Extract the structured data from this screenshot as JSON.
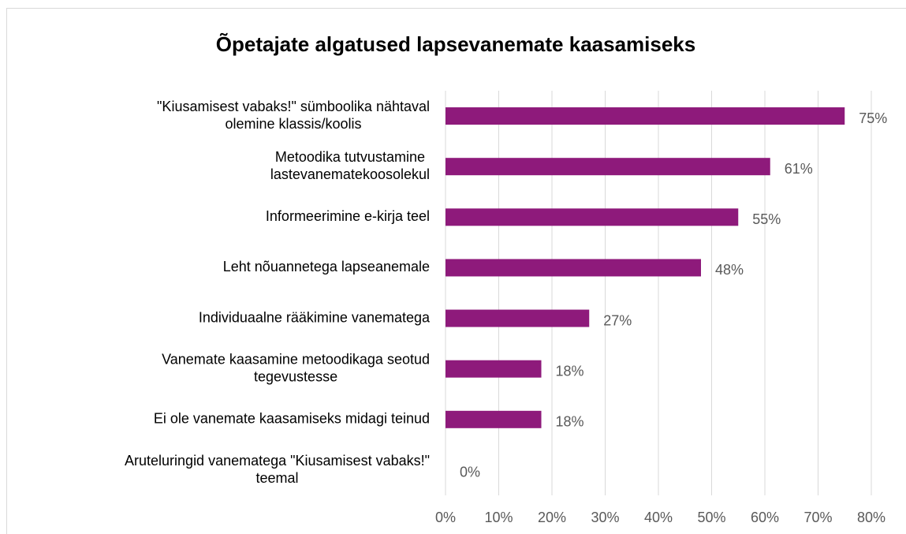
{
  "chart_data": {
    "type": "hbar",
    "title": "Õpetajate algatused lapsevanemate kaasamiseks",
    "categories": [
      "\"Kiusamisest vabaks!\" sümboolika nähtaval\nolemine klassis/koolis",
      "Metoodika tutvustamine\nlastevanematekoosolekul",
      "Informeerimine e-kirja teel",
      "Leht nõuannetega lapseanemale",
      "Individuaalne rääkimine vanematega",
      "Vanemate kaasamine metoodikaga seotud\ntegevustesse",
      "Ei ole vanemate kaasamiseks midagi teinud",
      "Aruteluringid vanematega \"Kiusamisest vabaks!\"\nteemal"
    ],
    "values": [
      75,
      61,
      55,
      48,
      27,
      18,
      18,
      0
    ],
    "value_labels": [
      "75%",
      "61%",
      "55%",
      "48%",
      "27%",
      "18%",
      "18%",
      "0%"
    ],
    "color": "#8e1a7b",
    "xlim": [
      0,
      80
    ],
    "xticks": [
      {
        "value": 0,
        "label": "0%"
      },
      {
        "value": 10,
        "label": "10%"
      },
      {
        "value": 20,
        "label": "20%"
      },
      {
        "value": 30,
        "label": "30%"
      },
      {
        "value": 40,
        "label": "40%"
      },
      {
        "value": 50,
        "label": "50%"
      },
      {
        "value": 60,
        "label": "60%"
      },
      {
        "value": 70,
        "label": "70%"
      },
      {
        "value": 80,
        "label": "80%"
      }
    ],
    "grid": true
  }
}
